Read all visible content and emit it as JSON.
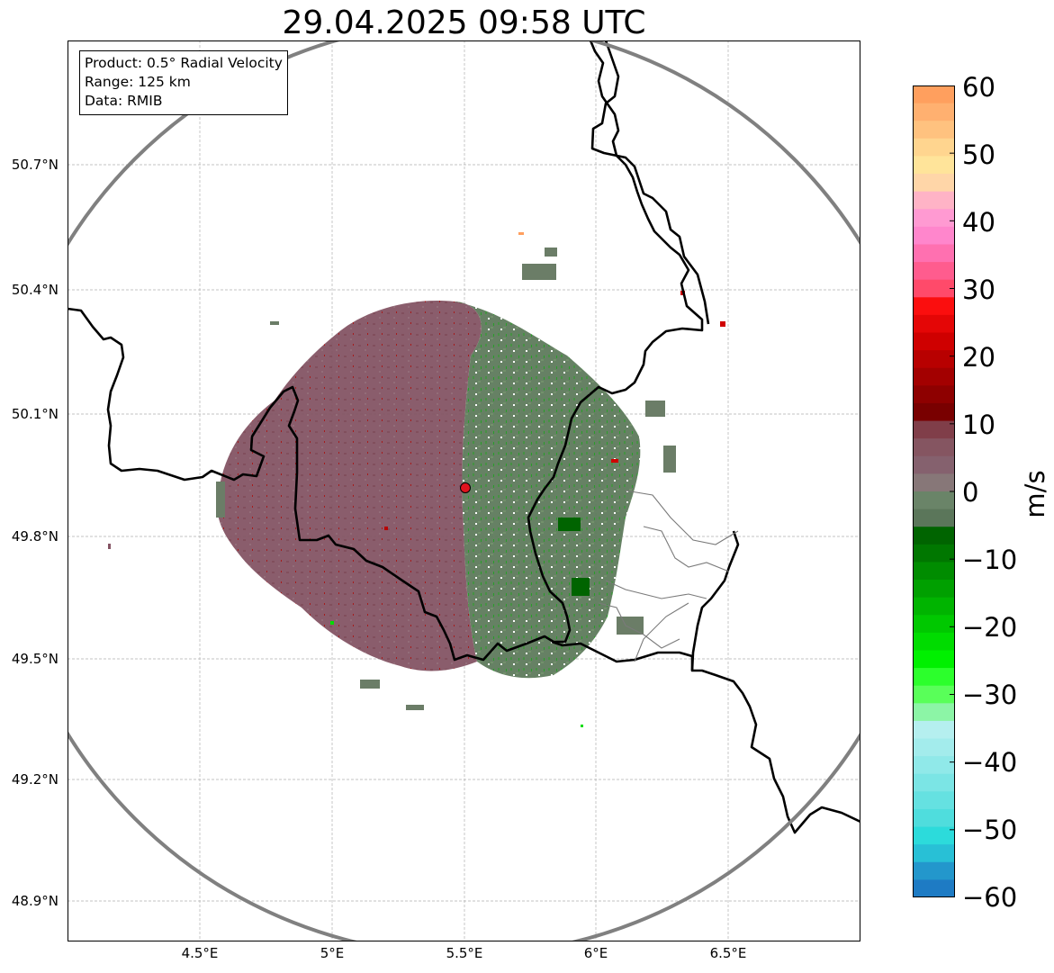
{
  "title": "29.04.2025 09:58 UTC",
  "info": {
    "product": "Product: 0.5° Radial Velocity",
    "range": "Range: 125 km",
    "data": "Data: RMIB"
  },
  "axes": {
    "lat_ticks": [
      "50.7°N",
      "50.4°N",
      "50.1°N",
      "49.8°N",
      "49.5°N",
      "49.2°N",
      "48.9°N"
    ],
    "lon_ticks": [
      "4.5°E",
      "5°E",
      "5.5°E",
      "6°E",
      "6.5°E"
    ]
  },
  "colorbar": {
    "label": "m/s",
    "ticks": [
      "60",
      "50",
      "40",
      "30",
      "20",
      "10",
      "0",
      "−10",
      "−20",
      "−30",
      "−40",
      "−50",
      "−60"
    ],
    "range": [
      -60,
      60
    ],
    "colors_top_to_bottom": [
      "#ff9f5e",
      "#ffb070",
      "#ffc27f",
      "#ffd58f",
      "#ffe49a",
      "#ffd6a8",
      "#ffb3c6",
      "#ff9ad2",
      "#ff86cc",
      "#ff70b0",
      "#ff5c8e",
      "#ff4a6a",
      "#fb0e0e",
      "#e40606",
      "#cf0000",
      "#b80000",
      "#a30000",
      "#8e0000",
      "#790000",
      "#803e49",
      "#855561",
      "#85616e",
      "#877778",
      "#6a8468",
      "#5b765a",
      "#006400",
      "#007700",
      "#008c00",
      "#00a000",
      "#00b400",
      "#00c800",
      "#00dc00",
      "#00f000",
      "#2cff2c",
      "#59ff59",
      "#8cf5a6",
      "#b5efef",
      "#a3ecec",
      "#90e9e9",
      "#7be5e5",
      "#65e1e1",
      "#4fdddd",
      "#2cdbdb",
      "#28c0d6",
      "#2397cc",
      "#1e7bc4"
    ]
  },
  "radar": {
    "site_marker_color": "#e0141e",
    "range_ring_color": "#808080"
  }
}
